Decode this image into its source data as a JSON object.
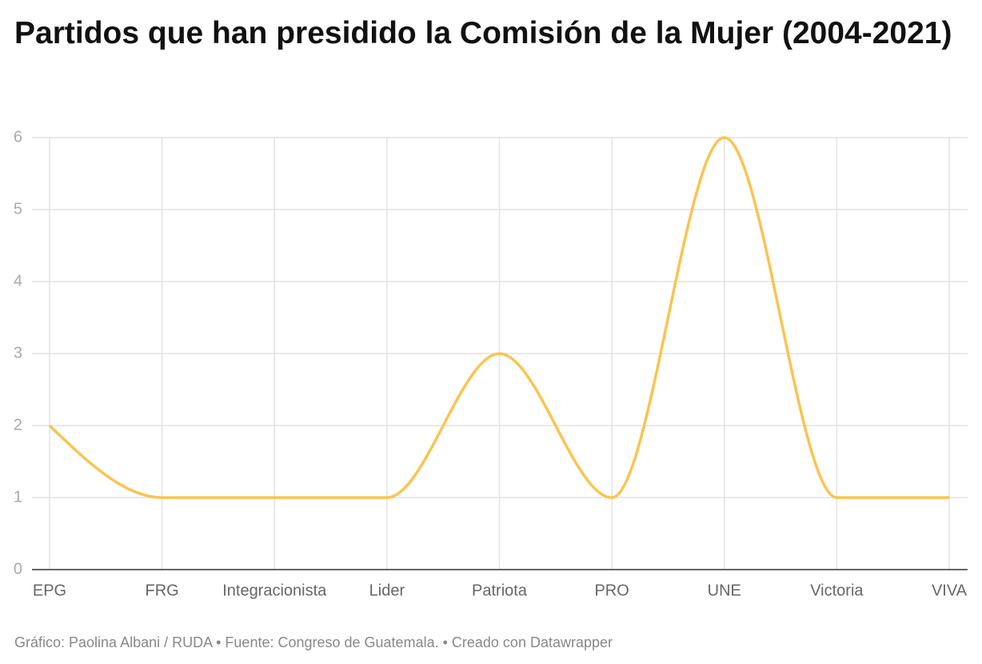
{
  "chart_data": {
    "type": "line",
    "title": "Partidos que han presidido la Comisión de la Mujer (2004-2021)",
    "footer": "Gráfico: Paolina Albani / RUDA • Fuente: Congreso de Guatemala. • Creado con Datawrapper",
    "categories": [
      "EPG",
      "FRG",
      "Integracionista",
      "Lider",
      "Patriota",
      "PRO",
      "UNE",
      "Victoria",
      "VIVA"
    ],
    "values": [
      2,
      1,
      1,
      1,
      3,
      1,
      6,
      1,
      1
    ],
    "color": "#fbc44f",
    "ylim": [
      0,
      6
    ],
    "yticks": [
      0,
      1,
      2,
      3,
      4,
      5,
      6
    ],
    "grid": true
  }
}
